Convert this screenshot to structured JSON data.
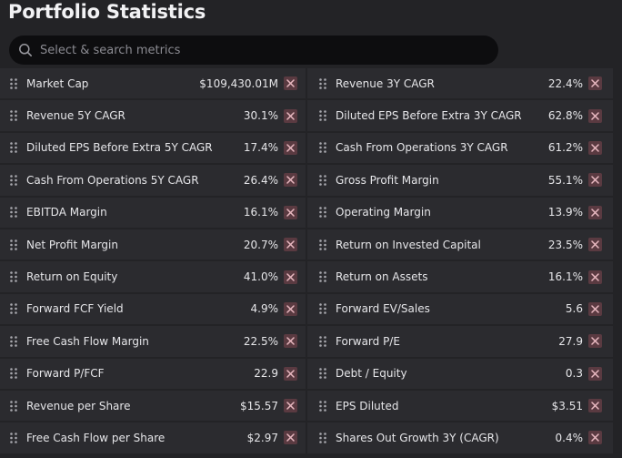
{
  "title": "Portfolio Statistics",
  "search": {
    "placeholder": "Select & search metrics",
    "icon": "search-icon"
  },
  "metrics": [
    {
      "name": "Market Cap",
      "value": "$109,430.01M"
    },
    {
      "name": "Revenue 3Y CAGR",
      "value": "22.4%"
    },
    {
      "name": "Revenue 5Y CAGR",
      "value": "30.1%"
    },
    {
      "name": "Diluted EPS Before Extra 3Y CAGR",
      "value": "62.8%"
    },
    {
      "name": "Diluted EPS Before Extra 5Y CAGR",
      "value": "17.4%"
    },
    {
      "name": "Cash From Operations 3Y CAGR",
      "value": "61.2%"
    },
    {
      "name": "Cash From Operations 5Y CAGR",
      "value": "26.4%"
    },
    {
      "name": "Gross Profit Margin",
      "value": "55.1%"
    },
    {
      "name": "EBITDA Margin",
      "value": "16.1%"
    },
    {
      "name": "Operating Margin",
      "value": "13.9%"
    },
    {
      "name": "Net Profit Margin",
      "value": "20.7%"
    },
    {
      "name": "Return on Invested Capital",
      "value": "23.5%"
    },
    {
      "name": "Return on Equity",
      "value": "41.0%"
    },
    {
      "name": "Return on Assets",
      "value": "16.1%"
    },
    {
      "name": "Forward FCF Yield",
      "value": "4.9%"
    },
    {
      "name": "Forward EV/Sales",
      "value": "5.6"
    },
    {
      "name": "Free Cash Flow Margin",
      "value": "22.5%"
    },
    {
      "name": "Forward P/E",
      "value": "27.9"
    },
    {
      "name": "Forward P/FCF",
      "value": "22.9"
    },
    {
      "name": "Debt / Equity",
      "value": "0.3"
    },
    {
      "name": "Revenue per Share",
      "value": "$15.57"
    },
    {
      "name": "EPS Diluted",
      "value": "$3.51"
    },
    {
      "name": "Free Cash Flow per Share",
      "value": "$2.97"
    },
    {
      "name": "Shares Out Growth 3Y (CAGR)",
      "value": "0.4%"
    }
  ],
  "colors": {
    "background": "#232326",
    "row": "#2b2b2f",
    "search": "#0d0d0f",
    "remove_button": "#5a3a41",
    "remove_icon": "#e8b8c0"
  }
}
